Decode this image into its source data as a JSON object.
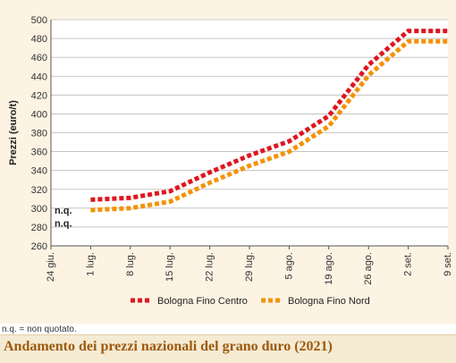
{
  "chart_data": {
    "type": "line",
    "title": "Andamento dei prezzi nazionali del grano duro (2021)",
    "ylabel": "Prezzi (euro/t)",
    "xlabel": "",
    "ylim": [
      260,
      500
    ],
    "yticks": [
      260,
      280,
      300,
      320,
      340,
      360,
      380,
      400,
      420,
      440,
      460,
      480,
      500
    ],
    "categories": [
      "24 giu.",
      "1 lug.",
      "8 lug.",
      "15 lug.",
      "22 lug.",
      "29 lug.",
      "5 ago.",
      "19 ago.",
      "26 ago.",
      "2 set.",
      "9 set."
    ],
    "grid": "horizontal",
    "legend_position": "bottom",
    "series": [
      {
        "name": "Bologna Fino Centro",
        "color": "#e0141e",
        "style": "dotted",
        "values": [
          null,
          309,
          311,
          318,
          338,
          356,
          371,
          398,
          452,
          488,
          488
        ]
      },
      {
        "name": "Bologna Fino Nord",
        "color": "#f39200",
        "style": "dotted",
        "values": [
          null,
          298,
          300,
          307,
          327,
          345,
          360,
          387,
          441,
          477,
          477
        ]
      }
    ],
    "annotations": [
      "n.q.",
      "n.q."
    ]
  },
  "footnote": "n.q. = non quotato.",
  "colors": {
    "panel_bg": "#fdf3e3",
    "title_color": "#9c5a0e",
    "grid": "#bbbbbb"
  }
}
